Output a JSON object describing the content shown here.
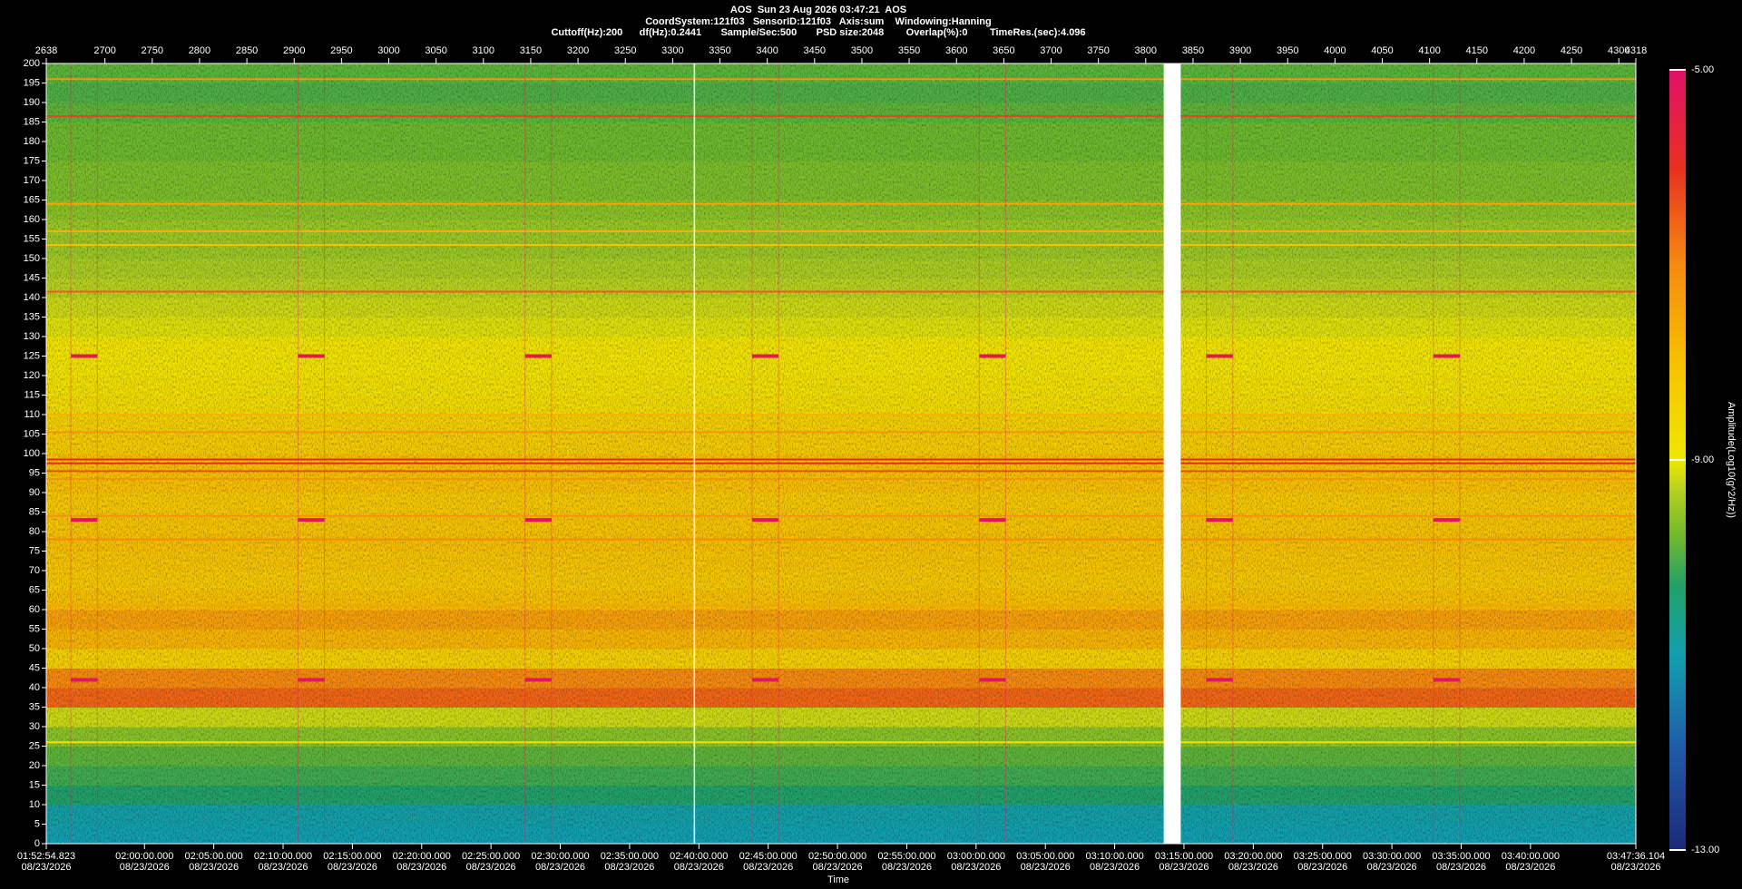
{
  "chart_data": {
    "type": "spectrogram",
    "title_lines": [
      "AOS  Sun 23 Aug 2026 03:47:21  AOS",
      "CoordSystem:121f03   SensorID:121f03   Axis:sum    Windowing:Hanning",
      "Cuttoff(Hz):200      df(Hz):0.2441       Sample/Sec:500       PSD size:2048        Overlap(%):0        TimeRes.(sec):4.096"
    ],
    "x_label": "Time",
    "colorbar_label": "Amplitude(Log10(g^2/Hz))",
    "xlim": [
      2638,
      4318
    ],
    "xticks": [
      2638,
      2700,
      2750,
      2800,
      2850,
      2900,
      2950,
      3000,
      3050,
      3100,
      3150,
      3200,
      3250,
      3300,
      3350,
      3400,
      3450,
      3500,
      3550,
      3600,
      3650,
      3700,
      3750,
      3800,
      3850,
      3900,
      3950,
      4000,
      4050,
      4100,
      4150,
      4200,
      4250,
      4300,
      4318
    ],
    "time_ticks": [
      {
        "time": "01:52:54.823",
        "date": "08/23/2026"
      },
      {
        "time": "02:00:00.000",
        "date": "08/23/2026"
      },
      {
        "time": "02:05:00.000",
        "date": "08/23/2026"
      },
      {
        "time": "02:10:00.000",
        "date": "08/23/2026"
      },
      {
        "time": "02:15:00.000",
        "date": "08/23/2026"
      },
      {
        "time": "02:20:00.000",
        "date": "08/23/2026"
      },
      {
        "time": "02:25:00.000",
        "date": "08/23/2026"
      },
      {
        "time": "02:30:00.000",
        "date": "08/23/2026"
      },
      {
        "time": "02:35:00.000",
        "date": "08/23/2026"
      },
      {
        "time": "02:40:00.000",
        "date": "08/23/2026"
      },
      {
        "time": "02:45:00.000",
        "date": "08/23/2026"
      },
      {
        "time": "02:50:00.000",
        "date": "08/23/2026"
      },
      {
        "time": "02:55:00.000",
        "date": "08/23/2026"
      },
      {
        "time": "03:00:00.000",
        "date": "08/23/2026"
      },
      {
        "time": "03:05:00.000",
        "date": "08/23/2026"
      },
      {
        "time": "03:10:00.000",
        "date": "08/23/2026"
      },
      {
        "time": "03:15:00.000",
        "date": "08/23/2026"
      },
      {
        "time": "03:20:00.000",
        "date": "08/23/2026"
      },
      {
        "time": "03:25:00.000",
        "date": "08/23/2026"
      },
      {
        "time": "03:30:00.000",
        "date": "08/23/2026"
      },
      {
        "time": "03:35:00.000",
        "date": "08/23/2026"
      },
      {
        "time": "03:40:00.000",
        "date": "08/23/2026"
      },
      {
        "time": "03:47:36.104",
        "date": "08/23/2026"
      }
    ],
    "ylim": [
      0,
      200
    ],
    "yticks": [
      0,
      5,
      10,
      15,
      20,
      25,
      30,
      35,
      40,
      45,
      50,
      55,
      60,
      65,
      70,
      75,
      80,
      85,
      90,
      95,
      100,
      105,
      110,
      115,
      120,
      125,
      130,
      135,
      140,
      145,
      150,
      155,
      160,
      165,
      170,
      175,
      180,
      185,
      190,
      195,
      200
    ],
    "bins": [
      0,
      5,
      10,
      15,
      20,
      25,
      30,
      35,
      40,
      45,
      50,
      55,
      60,
      65,
      70,
      75,
      80,
      85,
      90,
      95,
      100,
      105,
      110,
      115,
      120,
      125,
      130,
      135,
      140,
      145,
      150,
      155,
      160,
      165,
      170,
      175,
      180,
      185,
      190,
      195,
      200
    ],
    "amplitude": [
      -11.0,
      -10.9,
      -10.3,
      -10.1,
      -9.9,
      -9.6,
      -9.2,
      -6.6,
      -7.0,
      -8.4,
      -7.8,
      -7.4,
      -8.0,
      -8.2,
      -8.1,
      -8.0,
      -8.1,
      -8.2,
      -8.0,
      -8.0,
      -8.3,
      -8.4,
      -8.7,
      -8.8,
      -8.9,
      -8.9,
      -9.1,
      -9.2,
      -9.3,
      -9.4,
      -9.5,
      -9.5,
      -9.6,
      -9.7,
      -9.7,
      -9.8,
      -9.8,
      -9.9,
      -10.0,
      -9.9
    ],
    "line_frequencies": [
      196,
      186.5,
      164,
      157,
      153.5,
      141.5,
      110,
      105.5,
      98.5,
      97.5,
      95.5,
      93.5,
      84,
      78,
      61,
      26
    ],
    "line_amplitudes": [
      -7.2,
      -6.2,
      -7.5,
      -7.8,
      -8.0,
      -6.5,
      -7.8,
      -7.2,
      -5.8,
      -5.9,
      -6.3,
      -7.2,
      -7.2,
      -7.0,
      -7.5,
      -8.8
    ],
    "events": [
      [
        2664,
        2692
      ],
      [
        2904,
        2932
      ],
      [
        3144,
        3172
      ],
      [
        3384,
        3412
      ],
      [
        3624,
        3652
      ],
      [
        3864,
        3892
      ],
      [
        4104,
        4132
      ]
    ],
    "event_frequencies": [
      125,
      83,
      42
    ],
    "event_amplitude": -5.2,
    "gap": [
      3819,
      3837
    ],
    "cursor": 3323,
    "clim": [
      -13,
      -5
    ],
    "cticks": [
      {
        "value": -5,
        "label": "-5.00"
      },
      {
        "value": -9,
        "label": "-9.00"
      },
      {
        "value": -13,
        "label": "-13.00"
      }
    ],
    "colormap": [
      {
        "value": -13,
        "color": "#1c2a78"
      },
      {
        "value": -12,
        "color": "#1f5aa8"
      },
      {
        "value": -11,
        "color": "#129fb0"
      },
      {
        "value": -10.3,
        "color": "#22a06a"
      },
      {
        "value": -9.8,
        "color": "#6cb82e"
      },
      {
        "value": -9.3,
        "color": "#b8d020"
      },
      {
        "value": -9,
        "color": "#f0e800"
      },
      {
        "value": -8,
        "color": "#f7c000"
      },
      {
        "value": -7,
        "color": "#f58a10"
      },
      {
        "value": -6,
        "color": "#e83020"
      },
      {
        "value": -5,
        "color": "#e0106a"
      }
    ]
  }
}
